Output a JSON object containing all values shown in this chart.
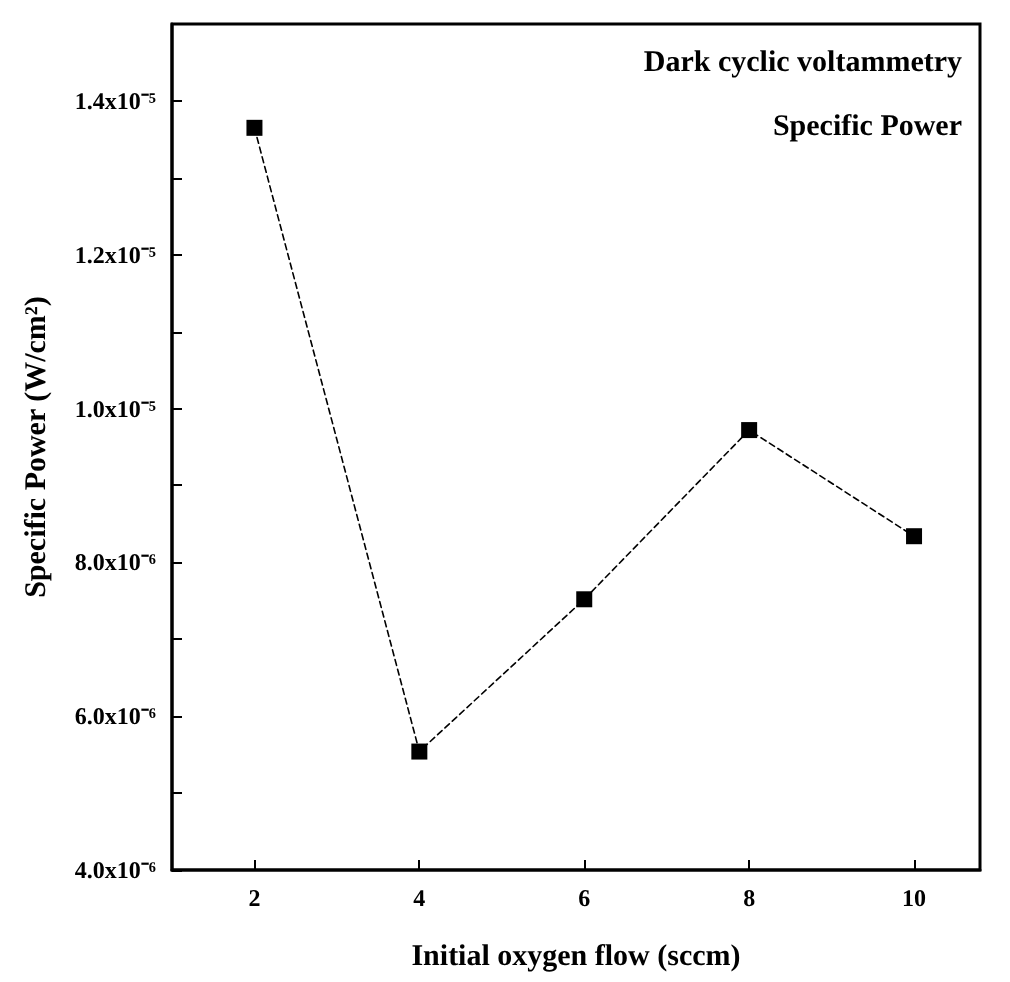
{
  "chart_data": {
    "type": "line",
    "xlabel": "Initial oxygen flow (sccm)",
    "ylabel": "Specific Power (W/cm²)",
    "annotations": [
      "Dark cyclic voltammetry",
      "Specific Power"
    ],
    "x": [
      2,
      4,
      6,
      8,
      10
    ],
    "series": [
      {
        "color": "#000000",
        "values": [
          1.365e-05,
          5.54e-06,
          7.52e-06,
          9.72e-06,
          8.34e-06
        ]
      }
    ],
    "marker": "square",
    "line_style": "dashed",
    "grid": false,
    "xlim": [
      1,
      10.8
    ],
    "xticks": [
      2,
      4,
      6,
      8,
      10
    ],
    "ylim": [
      4e-06,
      1.5e-05
    ],
    "yticks": [
      {
        "value": 4e-06,
        "label": "4.0x10⁻⁶"
      },
      {
        "value": 5e-06,
        "label": null
      },
      {
        "value": 6e-06,
        "label": "6.0x10⁻⁶"
      },
      {
        "value": 7e-06,
        "label": null
      },
      {
        "value": 8e-06,
        "label": "8.0x10⁻⁶"
      },
      {
        "value": 9e-06,
        "label": null
      },
      {
        "value": 1e-05,
        "label": "1.0x10⁻⁵"
      },
      {
        "value": 1.1e-05,
        "label": null
      },
      {
        "value": 1.2e-05,
        "label": "1.2x10⁻⁵"
      },
      {
        "value": 1.3e-05,
        "label": null
      },
      {
        "value": 1.4e-05,
        "label": "1.4x10⁻⁵"
      }
    ]
  }
}
